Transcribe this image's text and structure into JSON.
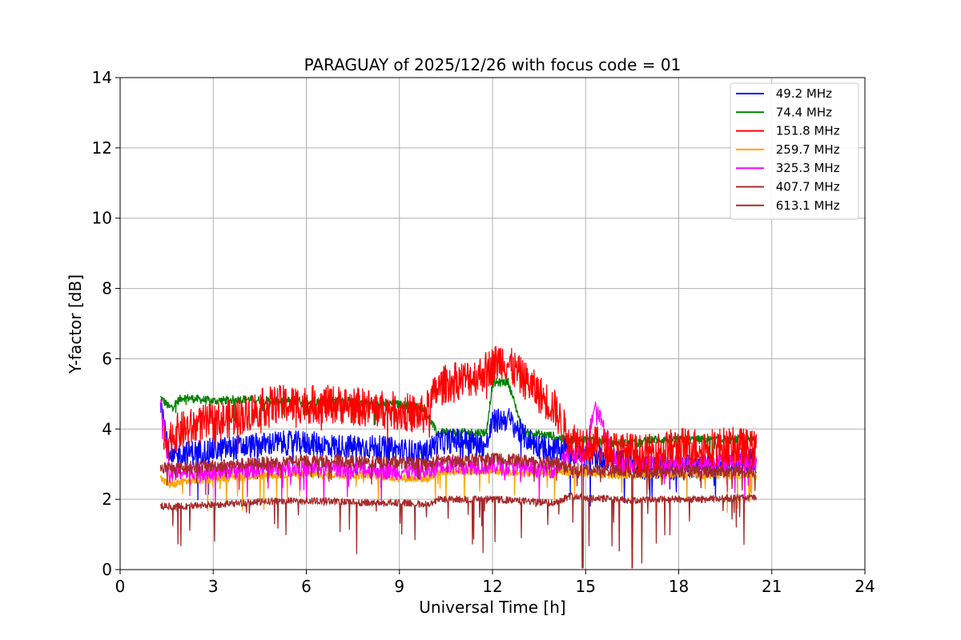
{
  "chart_data": {
    "type": "line",
    "title": "PARAGUAY of 2025/12/26 with focus code = 01",
    "xlabel": "Universal Time [h]",
    "ylabel": "Y-factor [dB]",
    "xlim": [
      0,
      24
    ],
    "ylim": [
      0,
      14
    ],
    "xticks": [
      0,
      3,
      6,
      9,
      12,
      15,
      18,
      21,
      24
    ],
    "yticks": [
      0,
      2,
      4,
      6,
      8,
      10,
      12,
      14
    ],
    "grid": true,
    "legend_position": "top-right",
    "series": [
      {
        "name": " 49.2 MHz",
        "color": "#0000ff",
        "x": [
          1.3,
          1.6,
          2,
          3,
          4,
          5,
          6,
          7,
          8,
          9,
          9.8,
          10.2,
          11,
          11.8,
          12,
          12.5,
          13,
          13.5,
          14,
          14.3,
          14.8,
          15.5,
          16,
          16.5,
          16.9,
          17.5,
          18,
          19,
          20,
          20.5
        ],
        "values": [
          4.9,
          3.1,
          3.3,
          3.4,
          3.5,
          3.6,
          3.6,
          3.5,
          3.5,
          3.4,
          3.3,
          3.6,
          3.7,
          3.5,
          4.2,
          4.3,
          3.8,
          3.5,
          3.4,
          3.4,
          3.3,
          3.2,
          3.1,
          3.1,
          2.9,
          2.9,
          2.9,
          3.0,
          3.1,
          3.2
        ]
      },
      {
        "name": " 74.4 MHz",
        "color": "#008000",
        "x": [
          1.3,
          1.6,
          2,
          3,
          4,
          5,
          6,
          7,
          8,
          9,
          9.8,
          10.2,
          11,
          11.8,
          12,
          12.5,
          13,
          14,
          14.3,
          15,
          16,
          16.8,
          17,
          18,
          19,
          20,
          20.5
        ],
        "values": [
          4.9,
          4.6,
          4.9,
          4.8,
          4.85,
          4.8,
          4.8,
          4.8,
          4.75,
          4.7,
          4.6,
          3.9,
          3.9,
          3.9,
          5.3,
          5.35,
          3.9,
          3.8,
          3.7,
          3.7,
          3.6,
          3.6,
          3.7,
          3.7,
          3.7,
          3.7,
          3.7
        ]
      },
      {
        "name": " 151.8 MHz",
        "color": "#ff0000",
        "x": [
          1.4,
          1.8,
          2.5,
          3,
          4,
          4.5,
          5,
          6,
          7,
          8,
          9,
          9.8,
          10.2,
          10.5,
          11,
          11.5,
          12,
          12.3,
          12.8,
          13.5,
          14,
          14.2,
          14.5,
          15,
          15.5,
          16,
          16.8,
          17,
          17.5,
          18,
          19,
          20,
          20.5
        ],
        "values": [
          3.6,
          3.9,
          4.1,
          4.2,
          4.4,
          4.6,
          4.7,
          4.7,
          4.7,
          4.6,
          4.5,
          4.4,
          5.1,
          5.3,
          5.4,
          5.5,
          5.8,
          6.0,
          5.6,
          5.0,
          4.6,
          4.2,
          3.7,
          3.6,
          3.5,
          3.4,
          3.3,
          3.3,
          3.4,
          3.5,
          3.5,
          3.5,
          3.4
        ]
      },
      {
        "name": " 259.7 MHz",
        "color": "#ffa500",
        "x": [
          1.3,
          1.6,
          2,
          3,
          4,
          5,
          6,
          7,
          8,
          9,
          10,
          10.2,
          11,
          12,
          13,
          14,
          14.3,
          15,
          16,
          17,
          18,
          19,
          20,
          20.5
        ],
        "values": [
          2.6,
          2.4,
          2.5,
          2.6,
          2.65,
          2.7,
          2.7,
          2.7,
          2.7,
          2.6,
          2.6,
          2.8,
          2.8,
          2.8,
          2.75,
          2.75,
          2.8,
          2.75,
          2.7,
          2.7,
          2.7,
          2.7,
          2.7,
          2.7
        ]
      },
      {
        "name": " 325.3 MHz",
        "color": "#ff00ff",
        "x": [
          1.3,
          1.6,
          2,
          3,
          4,
          5,
          6,
          7,
          8,
          9,
          10,
          10.3,
          11,
          12,
          13,
          14,
          14.5,
          15,
          15.3,
          16,
          17,
          18,
          19,
          20,
          20.5
        ],
        "values": [
          4.8,
          2.7,
          2.8,
          2.8,
          2.85,
          2.9,
          2.9,
          2.9,
          2.85,
          2.8,
          2.8,
          3.0,
          2.95,
          2.95,
          2.9,
          2.85,
          3.3,
          3.2,
          4.8,
          3.0,
          3.0,
          3.0,
          3.05,
          3.1,
          3.0
        ]
      },
      {
        "name": " 407.7 MHz",
        "color": "#a52a2a",
        "x": [
          1.3,
          2,
          3,
          4,
          5,
          6,
          7,
          8,
          9,
          10,
          10.2,
          11,
          12,
          13,
          14,
          14.3,
          15,
          16,
          17,
          18,
          19,
          20,
          20.5
        ],
        "values": [
          2.9,
          2.9,
          2.95,
          3.0,
          3.05,
          3.1,
          3.1,
          3.05,
          3.05,
          3.0,
          3.1,
          3.1,
          3.15,
          3.1,
          3.05,
          2.9,
          2.85,
          2.8,
          2.8,
          2.8,
          2.8,
          2.8,
          2.75
        ]
      },
      {
        "name": " 613.1 MHz",
        "color": "#a52a2a",
        "x": [
          1.3,
          2,
          3,
          4,
          5,
          6,
          7,
          8,
          9,
          10,
          10.2,
          11,
          12,
          13,
          14,
          14.5,
          15,
          16,
          16.5,
          17,
          18,
          19,
          20,
          20.5
        ],
        "values": [
          1.8,
          1.8,
          1.85,
          1.9,
          1.95,
          1.95,
          1.95,
          1.9,
          1.9,
          1.85,
          2.0,
          2.0,
          2.0,
          1.95,
          1.9,
          2.1,
          2.05,
          2.0,
          1.95,
          2.0,
          2.0,
          2.0,
          2.05,
          2.05
        ]
      }
    ],
    "annotations": [
      {
        "note": "sharp dips to ~0 near 14.9 h and 16.5 h on brown series"
      }
    ]
  }
}
